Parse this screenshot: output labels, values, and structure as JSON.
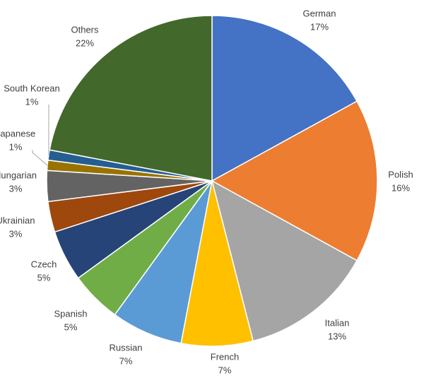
{
  "chart_data": {
    "type": "pie",
    "categories": [
      "German",
      "Polish",
      "Italian",
      "French",
      "Russian",
      "Spanish",
      "Czech",
      "Ukrainian",
      "Hungarian",
      "Japanese",
      "South Korean",
      "Others"
    ],
    "values": [
      17,
      16,
      13,
      7,
      7,
      5,
      5,
      3,
      3,
      1,
      1,
      22
    ],
    "value_labels": [
      "17%",
      "16%",
      "13%",
      "7%",
      "7%",
      "5%",
      "5%",
      "3%",
      "3%",
      "1%",
      "1%",
      "22%"
    ],
    "colors": [
      "#4472c4",
      "#ed7d31",
      "#a5a5a5",
      "#ffc000",
      "#5b9bd5",
      "#70ad47",
      "#264478",
      "#9e480e",
      "#636363",
      "#997300",
      "#255e91",
      "#43682b"
    ]
  }
}
